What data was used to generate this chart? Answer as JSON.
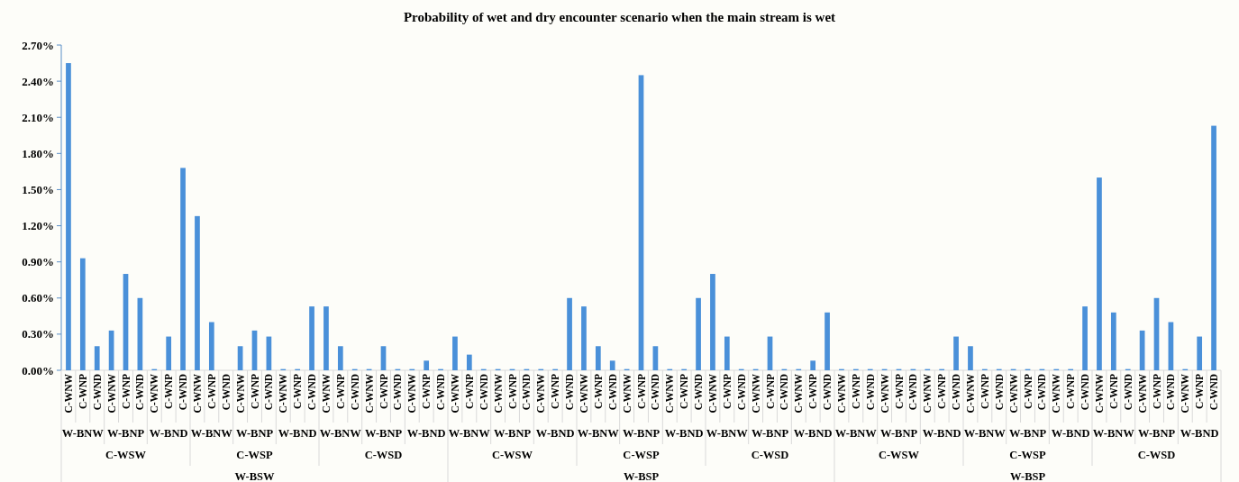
{
  "chart_data": {
    "type": "bar",
    "title": "Probability of wet and dry encounter scenario when the main stream is wet",
    "categories": [
      "C-WNW",
      "C-WNP",
      "C-WND",
      "C-WNW",
      "C-WNP",
      "C-WND",
      "C-WNW",
      "C-WNP",
      "C-WND",
      "C-WNW",
      "C-WNP",
      "C-WND",
      "C-WNW",
      "C-WNP",
      "C-WND",
      "C-WNW",
      "C-WNP",
      "C-WND",
      "C-WNW",
      "C-WNP",
      "C-WND",
      "C-WNW",
      "C-WNP",
      "C-WND",
      "C-WNW",
      "C-WNP",
      "C-WND",
      "C-WNW",
      "C-WNP",
      "C-WND",
      "C-WNW",
      "C-WNP",
      "C-WND",
      "C-WNW",
      "C-WNP",
      "C-WND",
      "C-WNW",
      "C-WNP",
      "C-WND",
      "C-WNW",
      "C-WNP",
      "C-WND",
      "C-WNW",
      "C-WNP",
      "C-WND",
      "C-WNW",
      "C-WNP",
      "C-WND",
      "C-WNW",
      "C-WNP",
      "C-WND",
      "C-WNW",
      "C-WNP",
      "C-WND",
      "C-WNW",
      "C-WNP",
      "C-WND",
      "C-WNW",
      "C-WNP",
      "C-WND",
      "C-WNW",
      "C-WNP",
      "C-WND",
      "C-WNW",
      "C-WNP",
      "C-WND",
      "C-WNW",
      "C-WNP",
      "C-WND",
      "C-WNW",
      "C-WNP",
      "C-WND",
      "C-WNW",
      "C-WNP",
      "C-WND",
      "C-WNW",
      "C-WNP",
      "C-WND",
      "C-WNW",
      "C-WNP",
      "C-WND"
    ],
    "values": [
      2.55,
      0.93,
      0.2,
      0.33,
      0.8,
      0.6,
      0.01,
      0.28,
      1.68,
      1.28,
      0.4,
      0,
      0.2,
      0.33,
      0.28,
      0.01,
      0.01,
      0.53,
      0.53,
      0.2,
      0.01,
      0.01,
      0.2,
      0.01,
      0.01,
      0.08,
      0.01,
      0.28,
      0.13,
      0.01,
      0.01,
      0.01,
      0.01,
      0.01,
      0.01,
      0.6,
      0.53,
      0.2,
      0.08,
      0.01,
      2.45,
      0.2,
      0.01,
      0.01,
      0.6,
      0.8,
      0.28,
      0.01,
      0.01,
      0.28,
      0.01,
      0.01,
      0.08,
      0.48,
      0.01,
      0.01,
      0.01,
      0.01,
      0.01,
      0.01,
      0.01,
      0.01,
      0.28,
      0.2,
      0.01,
      0.01,
      0.01,
      0.01,
      0.01,
      0.01,
      0.01,
      0.53,
      1.6,
      0.48,
      0.01,
      0.33,
      0.6,
      0.4,
      0.01,
      0.28,
      2.03
    ],
    "color": "#4a90d9",
    "ylim": [
      0,
      2.7
    ],
    "yticks": [
      {
        "value": 0,
        "label": "0.00%"
      },
      {
        "value": 0.3,
        "label": "0.30%"
      },
      {
        "value": 0.6,
        "label": "0.60%"
      },
      {
        "value": 0.9,
        "label": "0.90%"
      },
      {
        "value": 1.2,
        "label": "1.20%"
      },
      {
        "value": 1.5,
        "label": "1.50%"
      },
      {
        "value": 1.8,
        "label": "1.80%"
      },
      {
        "value": 2.1,
        "label": "2.10%"
      },
      {
        "value": 2.4,
        "label": "2.40%"
      },
      {
        "value": 2.7,
        "label": "2.70%"
      }
    ],
    "annotations": [
      "W-BNW",
      "W-BNP",
      "W-BND",
      "W-BNW",
      "W-BNP",
      "W-BND",
      "W-BNW",
      "W-BNP",
      "W-BND",
      "W-BNW",
      "W-BNP",
      "W-BND",
      "W-BNW",
      "W-BNP",
      "W-BND",
      "W-BNW",
      "W-BNP",
      "W-BND",
      "W-BNW",
      "W-BNP",
      "W-BND",
      "W-BNW",
      "W-BNP",
      "W-BND",
      "W-BNW",
      "W-BNP",
      "W-BND",
      "C-WSW",
      "C-WSP",
      "C-WSD",
      "C-WSW",
      "C-WSP",
      "C-WSD",
      "C-WSW",
      "C-WSP",
      "C-WSD",
      "W-BSW",
      "W-BSP",
      "W-BSP"
    ]
  }
}
